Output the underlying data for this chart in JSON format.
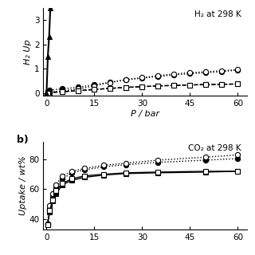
{
  "panel_a": {
    "annotation": "H₂ at 298 K",
    "xlabel": "P / bar",
    "ylabel": "H₂ Up",
    "ylim": [
      -0.1,
      3.5
    ],
    "yticks": [
      0,
      1,
      2,
      3
    ],
    "xlim": [
      -1,
      63
    ],
    "xticks": [
      0,
      15,
      30,
      45,
      60
    ],
    "series": [
      {
        "name": "filled_circle",
        "x": [
          0.3,
          1,
          5,
          10,
          15,
          20,
          25,
          30,
          35,
          40,
          45,
          50,
          55,
          60
        ],
        "y": [
          0.07,
          0.13,
          0.18,
          0.25,
          0.35,
          0.45,
          0.55,
          0.62,
          0.68,
          0.75,
          0.8,
          0.84,
          0.88,
          0.95
        ],
        "marker": "o",
        "fillstyle": "full",
        "linestyle": "dotted",
        "linewidth": 1.0
      },
      {
        "name": "open_circle",
        "x": [
          0.3,
          5,
          10,
          15,
          20,
          25,
          30,
          35,
          40,
          45,
          50,
          55,
          60
        ],
        "y": [
          0.02,
          0.1,
          0.18,
          0.3,
          0.44,
          0.56,
          0.64,
          0.72,
          0.79,
          0.84,
          0.88,
          0.92,
          0.97
        ],
        "marker": "o",
        "fillstyle": "none",
        "linestyle": "dotted",
        "linewidth": 1.0
      },
      {
        "name": "filled_square",
        "x": [
          0.3,
          1,
          5,
          10,
          15,
          20,
          25,
          30,
          35,
          40,
          45,
          50,
          55,
          60
        ],
        "y": [
          0.02,
          0.04,
          0.07,
          0.11,
          0.16,
          0.2,
          0.24,
          0.27,
          0.3,
          0.32,
          0.34,
          0.35,
          0.36,
          0.38
        ],
        "marker": "s",
        "fillstyle": "full",
        "linestyle": "dashed",
        "linewidth": 1.0
      },
      {
        "name": "open_square",
        "x": [
          0.3,
          5,
          10,
          15,
          20,
          25,
          30,
          35,
          40,
          45,
          50,
          55,
          60
        ],
        "y": [
          0.01,
          0.06,
          0.1,
          0.15,
          0.2,
          0.24,
          0.27,
          0.3,
          0.32,
          0.34,
          0.36,
          0.37,
          0.38
        ],
        "marker": "s",
        "fillstyle": "none",
        "linestyle": "dashed",
        "linewidth": 1.0
      },
      {
        "name": "filled_triangle",
        "x": [
          0,
          0.4,
          0.8,
          1.2
        ],
        "y": [
          0.0,
          1.5,
          2.3,
          3.5
        ],
        "marker": "^",
        "fillstyle": "full",
        "linestyle": "solid",
        "linewidth": 1.5
      }
    ]
  },
  "panel_b": {
    "label": "b)",
    "annotation": "CO₂ at 298 K",
    "ylabel": "Uptake / wt%",
    "ylim": [
      33,
      92
    ],
    "yticks": [
      40,
      60,
      80
    ],
    "xlim": [
      -1,
      63
    ],
    "xticks": [
      0,
      15,
      30,
      45,
      60
    ],
    "series": [
      {
        "name": "filled_circle",
        "x": [
          0.3,
          1,
          2,
          3,
          5,
          8,
          12,
          18,
          25,
          35,
          50,
          60
        ],
        "y": [
          37,
          47,
          55,
          61,
          67,
          71,
          73,
          75,
          76.5,
          78,
          79.5,
          80.5
        ],
        "marker": "o",
        "fillstyle": "full",
        "linestyle": "dotted",
        "linewidth": 1.0
      },
      {
        "name": "open_circle",
        "x": [
          0.3,
          1,
          2,
          3,
          5,
          8,
          12,
          18,
          25,
          35,
          50,
          60
        ],
        "y": [
          37,
          49,
          57,
          63,
          69,
          72,
          74,
          76,
          77.5,
          79.5,
          81.5,
          83
        ],
        "marker": "o",
        "fillstyle": "none",
        "linestyle": "dotted",
        "linewidth": 1.0
      },
      {
        "name": "filled_square",
        "x": [
          0.3,
          1,
          2,
          3,
          5,
          8,
          12,
          18,
          25,
          35,
          50,
          60
        ],
        "y": [
          36,
          45,
          52,
          57,
          63,
          66,
          68,
          69.5,
          70.5,
          71,
          71.5,
          72
        ],
        "marker": "s",
        "fillstyle": "full",
        "linestyle": "solid",
        "linewidth": 1.0
      },
      {
        "name": "open_square",
        "x": [
          0.3,
          1,
          2,
          3,
          5,
          8,
          12,
          18,
          25,
          35,
          50,
          60
        ],
        "y": [
          36,
          46,
          53,
          59,
          64,
          67,
          69,
          70,
          71,
          71.5,
          72,
          72
        ],
        "marker": "s",
        "fillstyle": "none",
        "linestyle": "solid",
        "linewidth": 1.0
      }
    ]
  },
  "background_color": "#ffffff",
  "markersize": 4.5
}
